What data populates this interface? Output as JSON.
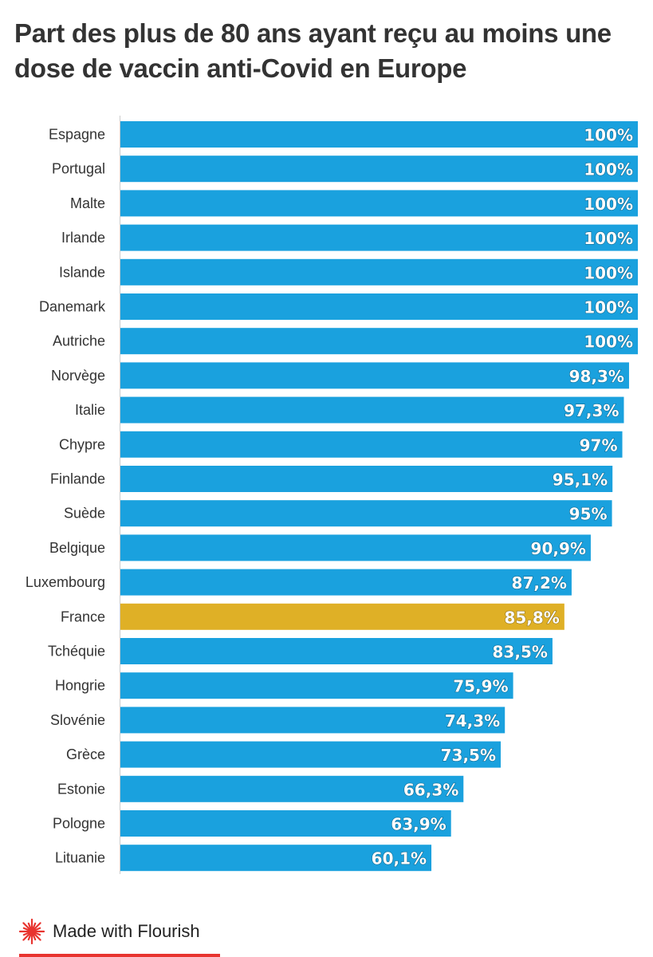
{
  "chart_data": {
    "type": "bar",
    "orientation": "horizontal",
    "title": "Part des plus de 80 ans ayant reçu au moins une dose de vaccin anti-Covid en Europe",
    "categories": [
      "Espagne",
      "Portugal",
      "Malte",
      "Irlande",
      "Islande",
      "Danemark",
      "Autriche",
      "Norvège",
      "Italie",
      "Chypre",
      "Finlande",
      "Suède",
      "Belgique",
      "Luxembourg",
      "France",
      "Tchéquie",
      "Hongrie",
      "Slovénie",
      "Grèce",
      "Estonie",
      "Pologne",
      "Lituanie"
    ],
    "values": [
      100,
      100,
      100,
      100,
      100,
      100,
      100,
      98.3,
      97.3,
      97,
      95.1,
      95,
      90.9,
      87.2,
      85.8,
      83.5,
      75.9,
      74.3,
      73.5,
      66.3,
      63.9,
      60.1
    ],
    "value_labels": [
      "100%",
      "100%",
      "100%",
      "100%",
      "100%",
      "100%",
      "100%",
      "98,3%",
      "97,3%",
      "97%",
      "95,1%",
      "95%",
      "90,9%",
      "87,2%",
      "85,8%",
      "83,5%",
      "75,9%",
      "74,3%",
      "73,5%",
      "66,3%",
      "63,9%",
      "60,1%"
    ],
    "highlight": "France",
    "xlim": [
      0,
      100
    ],
    "colors": {
      "bar": "#1aa1de",
      "highlight": "#dfb026"
    }
  },
  "footer": {
    "label": "Made with Flourish",
    "logo_icon": "flourish-burst-icon",
    "accent_color": "#e8342f"
  }
}
